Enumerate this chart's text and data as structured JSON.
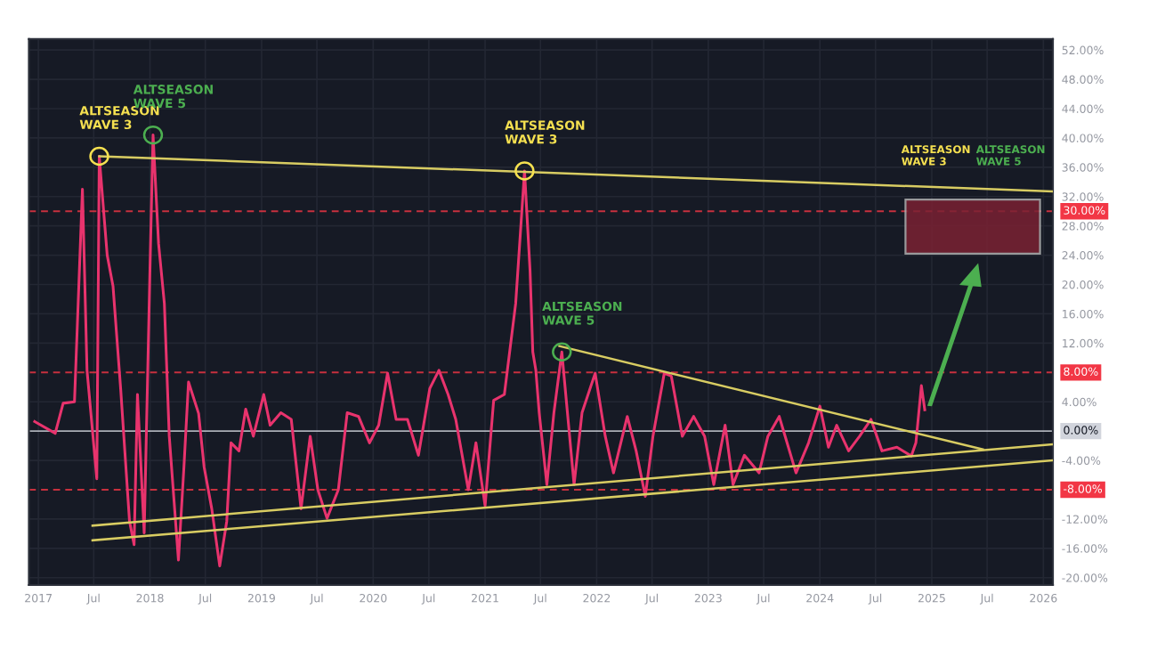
{
  "chart_data": {
    "type": "line",
    "x": [
      "2016-12-20",
      "2017-02-25",
      "2017-03-23",
      "2017-04-29",
      "2017-05-25",
      "2017-06-09",
      "2017-07-11",
      "2017-07-19",
      "2017-08-14",
      "2017-09-02",
      "2017-09-27",
      "2017-10-26",
      "2017-11-10",
      "2017-11-21",
      "2017-12-13",
      "2018-01-01",
      "2018-01-11",
      "2018-01-29",
      "2018-02-17",
      "2018-03-05",
      "2018-04-04",
      "2018-04-22",
      "2018-05-07",
      "2018-06-09",
      "2018-06-27",
      "2018-07-22",
      "2018-08-17",
      "2018-09-09",
      "2018-09-23",
      "2018-10-19",
      "2018-11-10",
      "2018-12-05",
      "2019-01-08",
      "2019-01-29",
      "2019-03-05",
      "2019-04-08",
      "2019-05-10",
      "2019-06-09",
      "2019-07-04",
      "2019-08-03",
      "2019-09-09",
      "2019-10-08",
      "2019-11-14",
      "2019-12-20",
      "2020-01-19",
      "2020-02-17",
      "2020-03-16",
      "2020-04-22",
      "2020-05-28",
      "2020-07-04",
      "2020-08-03",
      "2020-09-02",
      "2020-09-27",
      "2020-11-07",
      "2020-12-02",
      "2021-01-01",
      "2021-01-29",
      "2021-03-05",
      "2021-04-11",
      "2021-05-10",
      "2021-05-28",
      "2021-06-06",
      "2021-06-16",
      "2021-06-27",
      "2021-07-22",
      "2021-08-14",
      "2021-09-09",
      "2021-10-19",
      "2021-11-14",
      "2021-12-27",
      "2022-01-29",
      "2022-02-25",
      "2022-04-11",
      "2022-05-10",
      "2022-06-09",
      "2022-07-04",
      "2022-08-10",
      "2022-09-02",
      "2022-10-08",
      "2022-11-14",
      "2022-12-20",
      "2023-01-19",
      "2023-02-25",
      "2023-03-23",
      "2023-04-29",
      "2023-06-16",
      "2023-07-15",
      "2023-08-21",
      "2023-09-20",
      "2023-10-15",
      "2023-11-25",
      "2024-01-01",
      "2024-01-29",
      "2024-02-25",
      "2024-04-04",
      "2024-05-10",
      "2024-06-16",
      "2024-07-22",
      "2024-09-09",
      "2024-10-26",
      "2024-11-10",
      "2024-11-28",
      "2024-12-09"
    ],
    "series": [
      {
        "color": "#e8336d",
        "values": [
          1.3,
          -0.3,
          3.8,
          4.0,
          33.0,
          8.3,
          -6.5,
          37.5,
          24.0,
          19.8,
          5.8,
          -12.3,
          -15.5,
          5.0,
          -13.9,
          22.3,
          40.4,
          25.6,
          17.4,
          -0.7,
          -17.6,
          -4.9,
          6.7,
          2.4,
          -4.9,
          -10.6,
          -18.4,
          -12.3,
          -1.6,
          -2.7,
          3.0,
          -0.7,
          5.0,
          0.8,
          2.5,
          1.6,
          -10.6,
          -0.7,
          -8.0,
          -11.9,
          -8.0,
          2.5,
          2.0,
          -1.6,
          0.8,
          7.9,
          1.6,
          1.6,
          -3.3,
          5.8,
          8.3,
          5.0,
          1.6,
          -8.0,
          -1.6,
          -10.2,
          4.2,
          5.0,
          17.4,
          35.5,
          21.9,
          10.8,
          8.3,
          2.5,
          -7.3,
          2.5,
          10.8,
          -7.3,
          2.5,
          7.9,
          -0.7,
          -5.7,
          2.0,
          -2.7,
          -8.9,
          -0.7,
          7.9,
          7.5,
          -0.7,
          2.0,
          -0.7,
          -7.3,
          0.8,
          -7.3,
          -3.3,
          -5.7,
          -0.7,
          2.0,
          -2.2,
          -5.7,
          -1.6,
          3.4,
          -2.2,
          0.8,
          -2.7,
          -0.7,
          1.6,
          -2.7,
          -2.2,
          -3.4,
          -1.6,
          6.2,
          2.9
        ]
      },
      {
        "type": "line",
        "color": "#d8cc62",
        "x": [
          "2017-07-19",
          "2026-01-30"
        ],
        "values": [
          37.5,
          32.7
        ]
      },
      {
        "type": "line",
        "color": "#d8cc62",
        "x": [
          "2021-09-01",
          "2025-06-17"
        ],
        "values": [
          11.6,
          -2.5
        ]
      },
      {
        "type": "line",
        "color": "#d8cc62",
        "x": [
          "2017-06-27",
          "2026-01-30"
        ],
        "values": [
          -12.9,
          -1.8
        ]
      },
      {
        "type": "line",
        "color": "#d8cc62",
        "x": [
          "2017-06-27",
          "2026-01-30"
        ],
        "values": [
          -14.9,
          -4.0
        ]
      },
      {
        "type": "bar",
        "color": "#7a2233",
        "x": [
          "2025-05-15"
        ],
        "base": [
          24.2
        ],
        "values": [
          7.4
        ]
      }
    ],
    "xlim": [
      "2016-12-01",
      "2026-02-01"
    ],
    "xticks": [
      {
        "value": "2017-01-01",
        "label": "2017"
      },
      {
        "value": "2017-07-01",
        "label": "Jul"
      },
      {
        "value": "2018-01-01",
        "label": "2018"
      },
      {
        "value": "2018-07-01",
        "label": "Jul"
      },
      {
        "value": "2019-01-01",
        "label": "2019"
      },
      {
        "value": "2019-07-01",
        "label": "Jul"
      },
      {
        "value": "2020-01-01",
        "label": "2020"
      },
      {
        "value": "2020-07-01",
        "label": "Jul"
      },
      {
        "value": "2021-01-01",
        "label": "2021"
      },
      {
        "value": "2021-07-01",
        "label": "Jul"
      },
      {
        "value": "2022-01-01",
        "label": "2022"
      },
      {
        "value": "2022-07-01",
        "label": "Jul"
      },
      {
        "value": "2023-01-01",
        "label": "2023"
      },
      {
        "value": "2023-07-01",
        "label": "Jul"
      },
      {
        "value": "2024-01-01",
        "label": "2024"
      },
      {
        "value": "2024-07-01",
        "label": "Jul"
      },
      {
        "value": "2025-01-01",
        "label": "2025"
      },
      {
        "value": "2025-07-01",
        "label": "Jul"
      },
      {
        "value": "2026-01-01",
        "label": "2026"
      }
    ],
    "ylim": [
      -21,
      53.5
    ],
    "yticks": [
      {
        "value": 52,
        "label": "52.00%"
      },
      {
        "value": 48,
        "label": "48.00%"
      },
      {
        "value": 44,
        "label": "44.00%"
      },
      {
        "value": 40,
        "label": "40.00%"
      },
      {
        "value": 36,
        "label": "36.00%"
      },
      {
        "value": 32,
        "label": "32.00%"
      },
      {
        "value": 28,
        "label": "28.00%"
      },
      {
        "value": 24,
        "label": "24.00%"
      },
      {
        "value": 20,
        "label": "20.00%"
      },
      {
        "value": 16,
        "label": "16.00%"
      },
      {
        "value": 12,
        "label": "12.00%"
      },
      {
        "value": 4,
        "label": "4.00%"
      },
      {
        "value": -4,
        "label": "-4.00%"
      },
      {
        "value": -12,
        "label": "-12.00%"
      },
      {
        "value": -16,
        "label": "-16.00%"
      },
      {
        "value": -20,
        "label": "-20.00%"
      }
    ],
    "ref_lines": [
      {
        "axis": "y",
        "value": 30,
        "label": "30.00%",
        "color": "#f23645",
        "line_style": "dashed"
      },
      {
        "axis": "y",
        "value": 8,
        "label": "8.00%",
        "color": "#f23645",
        "line_style": "dashed"
      },
      {
        "axis": "y",
        "value": -8,
        "label": "-8.00%",
        "color": "#f23645",
        "line_style": "dashed"
      },
      {
        "axis": "y",
        "value": 0,
        "label": "0.00%",
        "color": "#d1d4dc",
        "line_style": "solid"
      }
    ],
    "annotations": [
      {
        "text": "ALTSEASON\nWAVE 3",
        "x": "2017-07-19",
        "y": 37.5
      },
      {
        "text": "ALTSEASON\nWAVE 5",
        "x": "2018-01-11",
        "y": 40.4
      },
      {
        "text": "ALTSEASON\nWAVE 3",
        "x": "2021-05-10",
        "y": 35.5
      },
      {
        "text": "ALTSEASON\nWAVE 5",
        "x": "2021-09-09",
        "y": 10.8
      },
      "ALTSEASON\nWAVE 3",
      "ALTSEASON\nWAVE 5"
    ],
    "grid": true,
    "legend": false
  }
}
